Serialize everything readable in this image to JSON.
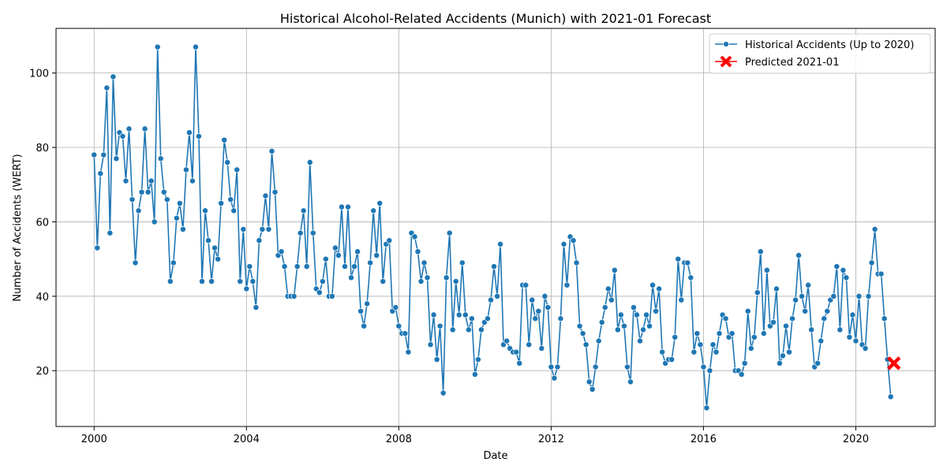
{
  "chart_data": {
    "type": "line",
    "title": "Historical Alcohol-Related Accidents (Munich) with 2021-01 Forecast",
    "xlabel": "Date",
    "ylabel": "Number of Accidents (WERT)",
    "xlim": [
      "1999-01",
      "2022-02"
    ],
    "ylim": [
      5,
      112
    ],
    "x_ticks": [
      "2000",
      "2004",
      "2008",
      "2012",
      "2016",
      "2020"
    ],
    "y_ticks": [
      20,
      40,
      60,
      80,
      100
    ],
    "grid": true,
    "legend_position": "top-right",
    "colors": {
      "historical": "#1f77b4",
      "forecast": "#ff0000"
    },
    "series": [
      {
        "name": "Historical Accidents (Up to 2020)",
        "start": "2000-01",
        "frequency": "monthly",
        "values": [
          78,
          53,
          73,
          78,
          96,
          57,
          99,
          77,
          84,
          83,
          71,
          85,
          66,
          49,
          63,
          68,
          85,
          68,
          71,
          60,
          107,
          77,
          68,
          66,
          44,
          49,
          61,
          65,
          58,
          74,
          84,
          71,
          107,
          83,
          44,
          63,
          55,
          44,
          53,
          50,
          65,
          82,
          76,
          66,
          63,
          74,
          44,
          58,
          42,
          48,
          44,
          37,
          55,
          58,
          67,
          58,
          79,
          68,
          51,
          52,
          48,
          40,
          40,
          40,
          48,
          57,
          63,
          48,
          76,
          57,
          42,
          41,
          44,
          50,
          40,
          40,
          53,
          51,
          64,
          48,
          64,
          45,
          48,
          52,
          36,
          32,
          38,
          49,
          63,
          51,
          65,
          44,
          54,
          55,
          36,
          37,
          32,
          30,
          30,
          25,
          57,
          56,
          52,
          44,
          49,
          45,
          27,
          35,
          23,
          32,
          14,
          45,
          57,
          31,
          44,
          35,
          49,
          35,
          31,
          34,
          19,
          23,
          31,
          33,
          34,
          39,
          48,
          40,
          54,
          27,
          28,
          26,
          25,
          25,
          22,
          43,
          43,
          27,
          39,
          34,
          36,
          26,
          40,
          37,
          21,
          18,
          21,
          34,
          54,
          43,
          56,
          55,
          49,
          32,
          30,
          27,
          17,
          15,
          21,
          28,
          33,
          37,
          42,
          39,
          47,
          31,
          35,
          32,
          21,
          17,
          37,
          35,
          28,
          31,
          35,
          32,
          43,
          36,
          42,
          25,
          22,
          23,
          23,
          29,
          50,
          39,
          49,
          49,
          45,
          25,
          30,
          27,
          21,
          10,
          20,
          27,
          25,
          30,
          35,
          34,
          29,
          30,
          20,
          20,
          19,
          22,
          36,
          26,
          29,
          41,
          52,
          30,
          47,
          32,
          33,
          42,
          22,
          24,
          32,
          25,
          34,
          39,
          51,
          40,
          36,
          43,
          31,
          21,
          22,
          28,
          34,
          36,
          39,
          40,
          48,
          31,
          47,
          45,
          29,
          35,
          28,
          40,
          27,
          26,
          40,
          49,
          58,
          46,
          46,
          34,
          23,
          13
        ]
      },
      {
        "name": "Predicted 2021-01",
        "points": [
          {
            "x": "2021-01",
            "y": 22
          }
        ]
      }
    ]
  }
}
